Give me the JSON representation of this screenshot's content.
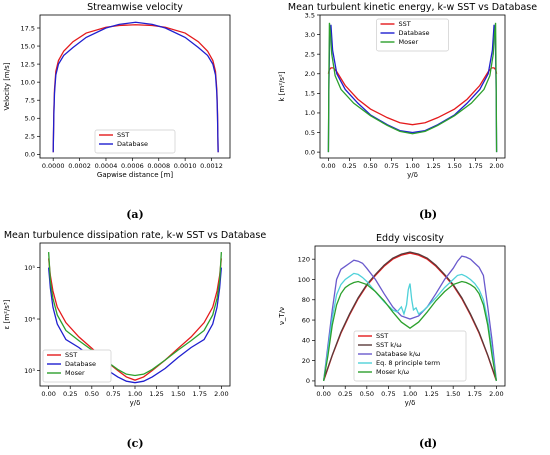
{
  "captions": [
    "(a)",
    "(b)",
    "(c)",
    "(d)"
  ],
  "chart_data": [
    {
      "type": "line",
      "title": "Streamwise velocity",
      "xlabel": "Gapwise distance [m]",
      "ylabel": "Velocity [m/s]",
      "xlim": [
        -0.0001,
        0.00134
      ],
      "ylim": [
        -0.5,
        19.3
      ],
      "xticks": [
        0.0,
        0.0002,
        0.0004,
        0.0006,
        0.0008,
        0.001,
        0.0012
      ],
      "xtick_labels": [
        "0.0000",
        "0.0002",
        "0.0004",
        "0.0006",
        "0.0008",
        "0.0010",
        "0.0012"
      ],
      "yticks": [
        0,
        2.5,
        5,
        7.5,
        10,
        12.5,
        15,
        17.5
      ],
      "ytick_labels": [
        "0.0",
        "2.5",
        "5.0",
        "7.5",
        "10.0",
        "12.5",
        "15.0",
        "17.5"
      ],
      "legend": "bottom-center",
      "series": [
        {
          "name": "SST",
          "color": "#e41a1c",
          "x": [
            0.0,
            5e-06,
            1e-05,
            2e-05,
            4e-05,
            8e-05,
            0.00015,
            0.00025,
            0.0004,
            0.0005,
            0.000625,
            0.00075,
            0.00085,
            0.001,
            0.0011,
            0.00117,
            0.00121,
            0.00123,
            0.00124,
            0.001245,
            0.00125
          ],
          "y": [
            0.3,
            6.0,
            9.0,
            11.5,
            13.0,
            14.3,
            15.6,
            16.8,
            17.6,
            17.85,
            17.95,
            17.85,
            17.6,
            16.8,
            15.6,
            14.3,
            13.0,
            11.5,
            9.0,
            6.0,
            0.3
          ]
        },
        {
          "name": "Database",
          "color": "#1f1fcf",
          "x": [
            0.0,
            5e-06,
            1e-05,
            2e-05,
            4e-05,
            8e-05,
            0.00015,
            0.00025,
            0.0004,
            0.0005,
            0.000625,
            0.00075,
            0.00085,
            0.001,
            0.0011,
            0.00117,
            0.00121,
            0.00123,
            0.00124,
            0.001245,
            0.00125
          ],
          "y": [
            0.3,
            5.5,
            8.5,
            11.0,
            12.5,
            13.7,
            14.8,
            16.2,
            17.5,
            18.0,
            18.3,
            18.0,
            17.5,
            16.2,
            14.8,
            13.7,
            12.5,
            11.0,
            8.5,
            5.5,
            0.3
          ]
        }
      ]
    },
    {
      "type": "line",
      "title": "Mean turbulent kinetic energy, k-w SST vs Database",
      "xlabel": "y/δ",
      "ylabel": "k [m²/s²]",
      "xlim": [
        -0.1,
        2.1
      ],
      "ylim": [
        -0.15,
        3.5
      ],
      "xticks": [
        0,
        0.25,
        0.5,
        0.75,
        1.0,
        1.25,
        1.5,
        1.75,
        2.0
      ],
      "xtick_labels": [
        "0.00",
        "0.25",
        "0.50",
        "0.75",
        "1.00",
        "1.25",
        "1.50",
        "1.75",
        "2.00"
      ],
      "yticks": [
        0,
        0.5,
        1.0,
        1.5,
        2.0,
        2.5,
        3.0,
        3.5
      ],
      "ytick_labels": [
        "0.0",
        "0.5",
        "1.0",
        "1.5",
        "2.0",
        "2.5",
        "3.0",
        "3.5"
      ],
      "legend": "top-center",
      "series": [
        {
          "name": "SST",
          "color": "#e41a1c",
          "x": [
            0.0,
            0.01,
            0.03,
            0.06,
            0.1,
            0.2,
            0.35,
            0.5,
            0.7,
            0.85,
            1.0,
            1.15,
            1.3,
            1.5,
            1.65,
            1.8,
            1.9,
            1.94,
            1.97,
            1.99,
            2.0
          ],
          "y": [
            2.0,
            2.1,
            2.15,
            2.15,
            2.05,
            1.7,
            1.35,
            1.1,
            0.88,
            0.75,
            0.7,
            0.75,
            0.88,
            1.1,
            1.35,
            1.7,
            2.05,
            2.15,
            2.15,
            2.1,
            2.0
          ]
        },
        {
          "name": "Database",
          "color": "#1f1fcf",
          "x": [
            0.0,
            0.005,
            0.015,
            0.03,
            0.05,
            0.1,
            0.2,
            0.35,
            0.5,
            0.7,
            0.85,
            1.0,
            1.15,
            1.3,
            1.5,
            1.65,
            1.8,
            1.9,
            1.95,
            1.97,
            1.985,
            1.995,
            2.0
          ],
          "y": [
            0.0,
            1.5,
            3.0,
            3.25,
            2.6,
            2.0,
            1.6,
            1.25,
            0.95,
            0.7,
            0.55,
            0.5,
            0.55,
            0.7,
            0.95,
            1.25,
            1.6,
            2.0,
            2.6,
            3.25,
            3.0,
            1.5,
            0.0
          ]
        },
        {
          "name": "Moser",
          "color": "#2ca02c",
          "x": [
            0.0,
            0.005,
            0.012,
            0.025,
            0.04,
            0.08,
            0.15,
            0.3,
            0.5,
            0.7,
            0.85,
            1.0,
            1.15,
            1.3,
            1.5,
            1.7,
            1.85,
            1.92,
            1.96,
            1.975,
            1.988,
            1.995,
            2.0
          ],
          "y": [
            0.0,
            1.8,
            3.3,
            3.0,
            2.5,
            1.95,
            1.6,
            1.25,
            0.93,
            0.68,
            0.53,
            0.47,
            0.53,
            0.68,
            0.93,
            1.25,
            1.6,
            1.95,
            2.5,
            3.0,
            3.3,
            1.8,
            0.0
          ]
        }
      ]
    },
    {
      "type": "line",
      "title": "Mean turbulence dissipation rate, k-w SST vs Database",
      "xlabel": "y/δ",
      "ylabel": "ε [m²/s³]",
      "yscale": "log",
      "xlim": [
        -0.1,
        2.1
      ],
      "ylim": [
        500,
        300000
      ],
      "xticks": [
        0,
        0.25,
        0.5,
        0.75,
        1.0,
        1.25,
        1.5,
        1.75,
        2.0
      ],
      "xtick_labels": [
        "0.00",
        "0.25",
        "0.50",
        "0.75",
        "1.00",
        "1.25",
        "1.50",
        "1.75",
        "2.00"
      ],
      "yticks": [
        1000,
        10000,
        100000
      ],
      "ytick_labels": [
        "10³",
        "10⁴",
        "10⁵"
      ],
      "legend": "bottom-left",
      "series": [
        {
          "name": "SST",
          "color": "#e41a1c",
          "x": [
            0.0,
            0.02,
            0.05,
            0.1,
            0.2,
            0.35,
            0.5,
            0.65,
            0.8,
            0.9,
            1.0,
            1.1,
            1.2,
            1.35,
            1.5,
            1.65,
            1.8,
            1.9,
            1.95,
            1.98,
            2.0
          ],
          "y": [
            150000,
            70000,
            35000,
            17000,
            8500,
            4500,
            2700,
            1600,
            1000,
            750,
            650,
            750,
            1000,
            1600,
            2700,
            4500,
            8500,
            17000,
            35000,
            70000,
            150000
          ]
        },
        {
          "name": "Database",
          "color": "#1f1fcf",
          "x": [
            0.0,
            0.02,
            0.05,
            0.1,
            0.2,
            0.35,
            0.5,
            0.65,
            0.8,
            0.9,
            1.0,
            1.1,
            1.2,
            1.35,
            1.5,
            1.65,
            1.8,
            1.9,
            1.95,
            1.98,
            2.0
          ],
          "y": [
            100000,
            40000,
            17000,
            8000,
            4000,
            2800,
            1800,
            1100,
            750,
            620,
            580,
            620,
            750,
            1100,
            1800,
            2800,
            4000,
            8000,
            17000,
            40000,
            100000
          ]
        },
        {
          "name": "Moser",
          "color": "#2ca02c",
          "x": [
            0.0,
            0.02,
            0.05,
            0.1,
            0.2,
            0.35,
            0.5,
            0.65,
            0.8,
            0.9,
            1.0,
            1.1,
            1.2,
            1.35,
            1.5,
            1.65,
            1.8,
            1.9,
            1.95,
            1.98,
            2.0
          ],
          "y": [
            200000,
            55000,
            25000,
            12000,
            6000,
            3800,
            2500,
            1600,
            1050,
            850,
            800,
            850,
            1050,
            1600,
            2500,
            3800,
            6000,
            12000,
            25000,
            55000,
            200000
          ]
        }
      ]
    },
    {
      "type": "line",
      "title": "Eddy viscosity",
      "xlabel": "y/δ",
      "ylabel": "ν_T/ν",
      "xlim": [
        -0.1,
        2.1
      ],
      "ylim": [
        -5,
        133
      ],
      "xticks": [
        0,
        0.25,
        0.5,
        0.75,
        1.0,
        1.25,
        1.5,
        1.75,
        2.0
      ],
      "xtick_labels": [
        "0.00",
        "0.25",
        "0.50",
        "0.75",
        "1.00",
        "1.25",
        "1.50",
        "1.75",
        "2.00"
      ],
      "yticks": [
        0,
        20,
        40,
        60,
        80,
        100,
        120
      ],
      "ytick_labels": [
        "0",
        "20",
        "40",
        "60",
        "80",
        "100",
        "120"
      ],
      "legend": "bottom-center",
      "series": [
        {
          "name": "SST",
          "color": "#e41a1c",
          "x": [
            0.0,
            0.1,
            0.2,
            0.3,
            0.4,
            0.5,
            0.6,
            0.7,
            0.8,
            0.9,
            1.0,
            1.1,
            1.2,
            1.3,
            1.4,
            1.5,
            1.6,
            1.7,
            1.8,
            1.9,
            2.0
          ],
          "y": [
            0,
            25,
            47,
            65,
            81,
            94,
            104,
            113,
            120,
            124,
            126,
            124,
            120,
            113,
            104,
            94,
            81,
            65,
            47,
            25,
            0
          ]
        },
        {
          "name": "SST k/ω",
          "color": "#5a3a3a",
          "x": [
            0.0,
            0.1,
            0.2,
            0.3,
            0.4,
            0.5,
            0.6,
            0.7,
            0.8,
            0.9,
            1.0,
            1.1,
            1.2,
            1.3,
            1.4,
            1.5,
            1.6,
            1.7,
            1.8,
            1.9,
            2.0
          ],
          "y": [
            1,
            25.5,
            48,
            66,
            82,
            95,
            105,
            114,
            121,
            125,
            127,
            125,
            121,
            114,
            105,
            95,
            82,
            66,
            48,
            25.5,
            1
          ]
        },
        {
          "name": "Database k/ω",
          "color": "#6a5acd",
          "x": [
            0.0,
            0.05,
            0.1,
            0.15,
            0.2,
            0.25,
            0.3,
            0.35,
            0.4,
            0.45,
            0.5,
            0.6,
            0.7,
            0.8,
            0.9,
            1.0,
            1.1,
            1.2,
            1.3,
            1.4,
            1.5,
            1.55,
            1.6,
            1.65,
            1.7,
            1.75,
            1.8,
            1.85,
            1.9,
            1.95,
            2.0
          ],
          "y": [
            0,
            35,
            70,
            100,
            110,
            113,
            116,
            119,
            118,
            116,
            111,
            100,
            86,
            73,
            64,
            61,
            64,
            73,
            86,
            100,
            111,
            118,
            123,
            122,
            120,
            116,
            112,
            104,
            73,
            40,
            0
          ]
        },
        {
          "name": "Eq. 8 principle term",
          "color": "#4fd1d9",
          "x": [
            0.0,
            0.05,
            0.1,
            0.15,
            0.2,
            0.25,
            0.3,
            0.35,
            0.4,
            0.45,
            0.5,
            0.6,
            0.7,
            0.8,
            0.85,
            0.9,
            0.93,
            0.96,
            0.98,
            1.0,
            1.02,
            1.04,
            1.07,
            1.1,
            1.15,
            1.2,
            1.3,
            1.4,
            1.5,
            1.55,
            1.6,
            1.65,
            1.7,
            1.75,
            1.8,
            1.85,
            1.9,
            1.95,
            2.0
          ],
          "y": [
            0,
            30,
            62,
            85,
            95,
            100,
            103,
            106,
            105,
            102,
            98,
            88,
            78,
            70,
            68,
            73,
            66,
            75,
            90,
            96,
            80,
            70,
            72,
            66,
            69,
            73,
            82,
            92,
            100,
            104,
            105,
            103,
            100,
            96,
            90,
            80,
            60,
            30,
            0
          ]
        },
        {
          "name": "Moser k/ω",
          "color": "#2ca02c",
          "x": [
            0.0,
            0.05,
            0.1,
            0.15,
            0.2,
            0.25,
            0.3,
            0.35,
            0.4,
            0.5,
            0.6,
            0.7,
            0.8,
            0.9,
            1.0,
            1.1,
            1.2,
            1.3,
            1.4,
            1.5,
            1.6,
            1.65,
            1.7,
            1.75,
            1.8,
            1.85,
            1.9,
            1.95,
            2.0
          ],
          "y": [
            0,
            25,
            55,
            75,
            86,
            92,
            95,
            97,
            98,
            95,
            88,
            79,
            68,
            58,
            52,
            58,
            68,
            79,
            88,
            95,
            98,
            97,
            95,
            92,
            86,
            75,
            55,
            25,
            0
          ]
        }
      ]
    }
  ]
}
